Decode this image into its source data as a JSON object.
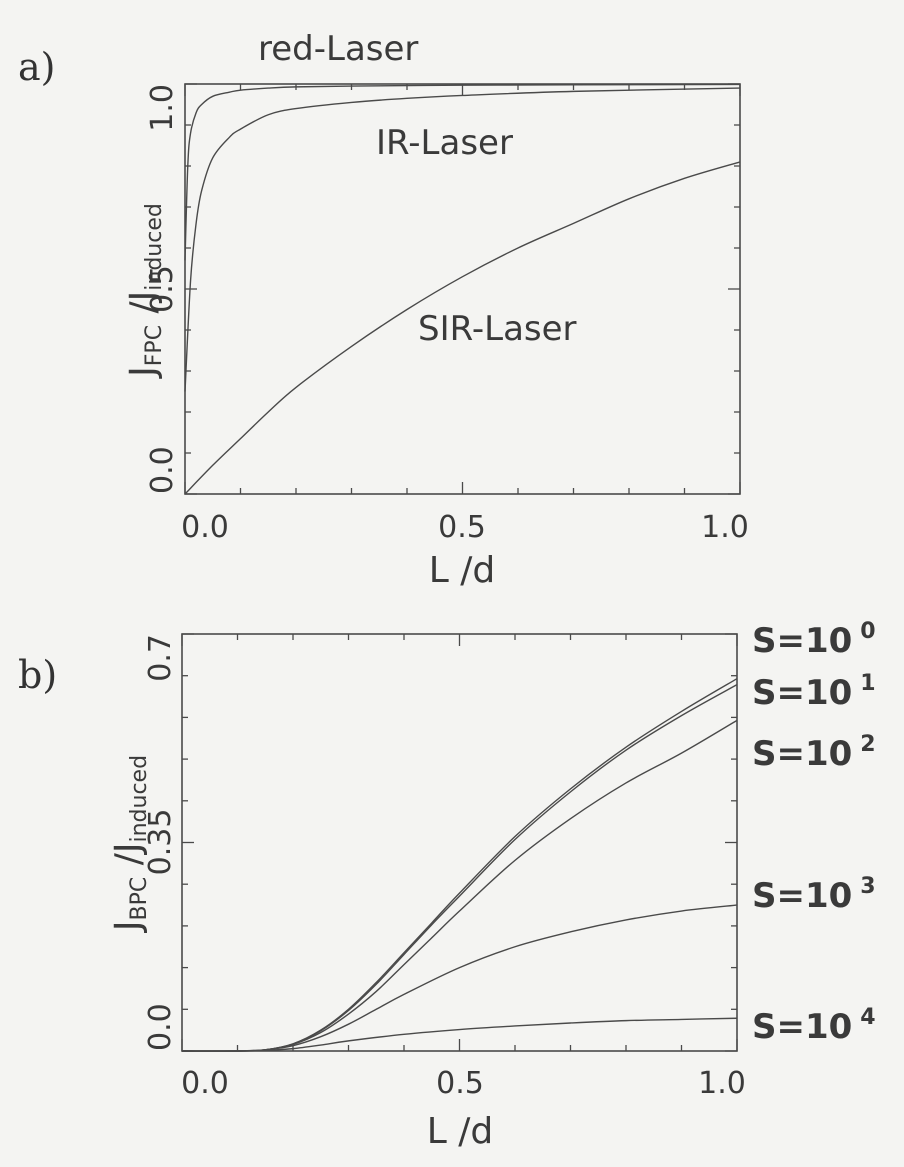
{
  "chart_data": [
    {
      "type": "line",
      "panel_label": "a)",
      "xlabel": "L /d",
      "ylabel_main": "J",
      "ylabel_num_sub": "FPC",
      "ylabel_den_sub": "induced",
      "xlim": [
        0.0,
        1.0
      ],
      "ylim": [
        0.0,
        1.0
      ],
      "x_ticks": [
        "0.0",
        "0.5",
        "1.0"
      ],
      "y_ticks": [
        "0.0",
        "0.5",
        "1.0"
      ],
      "x_tick_values": [
        0.0,
        0.5,
        1.0
      ],
      "y_tick_values": [
        0.0,
        0.5,
        1.0
      ],
      "annotations": [
        "red-Laser",
        "IR-Laser",
        "SIR-Laser"
      ],
      "series": [
        {
          "x": [
            0.0,
            0.005,
            0.01,
            0.02,
            0.03,
            0.05,
            0.08,
            0.1,
            0.15,
            0.2,
            0.3,
            0.5,
            0.7,
            1.0
          ],
          "y": [
            0.57,
            0.8,
            0.88,
            0.93,
            0.95,
            0.97,
            0.98,
            0.985,
            0.99,
            0.993,
            0.995,
            0.997,
            0.998,
            0.999
          ]
        },
        {
          "x": [
            0.0,
            0.01,
            0.02,
            0.03,
            0.05,
            0.08,
            0.1,
            0.15,
            0.2,
            0.3,
            0.4,
            0.5,
            0.7,
            1.0
          ],
          "y": [
            0.25,
            0.52,
            0.66,
            0.74,
            0.82,
            0.87,
            0.89,
            0.925,
            0.94,
            0.955,
            0.965,
            0.972,
            0.982,
            0.99
          ]
        },
        {
          "x": [
            0.0,
            0.05,
            0.1,
            0.15,
            0.2,
            0.3,
            0.4,
            0.5,
            0.6,
            0.7,
            0.8,
            0.9,
            1.0
          ],
          "y": [
            0.0,
            0.07,
            0.135,
            0.2,
            0.26,
            0.36,
            0.45,
            0.53,
            0.6,
            0.66,
            0.72,
            0.77,
            0.81
          ]
        }
      ]
    },
    {
      "type": "line",
      "panel_label": "b)",
      "xlabel": "L /d",
      "ylabel_main": "J",
      "ylabel_num_sub": "BPC",
      "ylabel_den_sub": "induced",
      "xlim": [
        0.0,
        1.0
      ],
      "ylim": [
        0.0,
        0.7
      ],
      "x_ticks": [
        "0.0",
        "0.5",
        "1.0"
      ],
      "y_ticks": [
        "0.0",
        "0.35",
        "0.7"
      ],
      "x_tick_values": [
        0.0,
        0.5,
        1.0
      ],
      "y_tick_values": [
        0.0,
        0.35,
        0.7
      ],
      "series": [
        {
          "name": "S=10",
          "exp": "0",
          "x": [
            0.0,
            0.1,
            0.15,
            0.2,
            0.25,
            0.3,
            0.35,
            0.4,
            0.45,
            0.5,
            0.6,
            0.7,
            0.8,
            0.9,
            1.0
          ],
          "y": [
            0.0,
            0.0,
            0.002,
            0.012,
            0.035,
            0.07,
            0.115,
            0.165,
            0.215,
            0.265,
            0.36,
            0.44,
            0.51,
            0.57,
            0.625
          ]
        },
        {
          "name": "S=10",
          "exp": "1",
          "x": [
            0.0,
            0.1,
            0.15,
            0.2,
            0.25,
            0.3,
            0.35,
            0.4,
            0.45,
            0.5,
            0.6,
            0.7,
            0.8,
            0.9,
            1.0
          ],
          "y": [
            0.0,
            0.0,
            0.002,
            0.012,
            0.034,
            0.068,
            0.112,
            0.162,
            0.212,
            0.26,
            0.355,
            0.435,
            0.505,
            0.563,
            0.615
          ]
        },
        {
          "name": "S=10",
          "exp": "2",
          "x": [
            0.0,
            0.1,
            0.15,
            0.2,
            0.25,
            0.3,
            0.35,
            0.4,
            0.45,
            0.5,
            0.6,
            0.7,
            0.8,
            0.9,
            1.0
          ],
          "y": [
            0.0,
            0.0,
            0.002,
            0.011,
            0.031,
            0.062,
            0.1,
            0.145,
            0.19,
            0.235,
            0.32,
            0.39,
            0.45,
            0.5,
            0.555
          ]
        },
        {
          "name": "S=10",
          "exp": "3",
          "x": [
            0.0,
            0.1,
            0.15,
            0.2,
            0.25,
            0.3,
            0.35,
            0.4,
            0.5,
            0.6,
            0.7,
            0.8,
            0.9,
            1.0
          ],
          "y": [
            0.0,
            0.0,
            0.002,
            0.009,
            0.024,
            0.045,
            0.07,
            0.095,
            0.14,
            0.175,
            0.2,
            0.22,
            0.235,
            0.245
          ]
        },
        {
          "name": "S=10",
          "exp": "4",
          "x": [
            0.0,
            0.1,
            0.15,
            0.2,
            0.25,
            0.3,
            0.4,
            0.5,
            0.6,
            0.7,
            0.8,
            0.9,
            1.0
          ],
          "y": [
            0.0,
            0.0,
            0.001,
            0.004,
            0.01,
            0.017,
            0.028,
            0.036,
            0.042,
            0.047,
            0.051,
            0.053,
            0.055
          ]
        }
      ]
    }
  ]
}
